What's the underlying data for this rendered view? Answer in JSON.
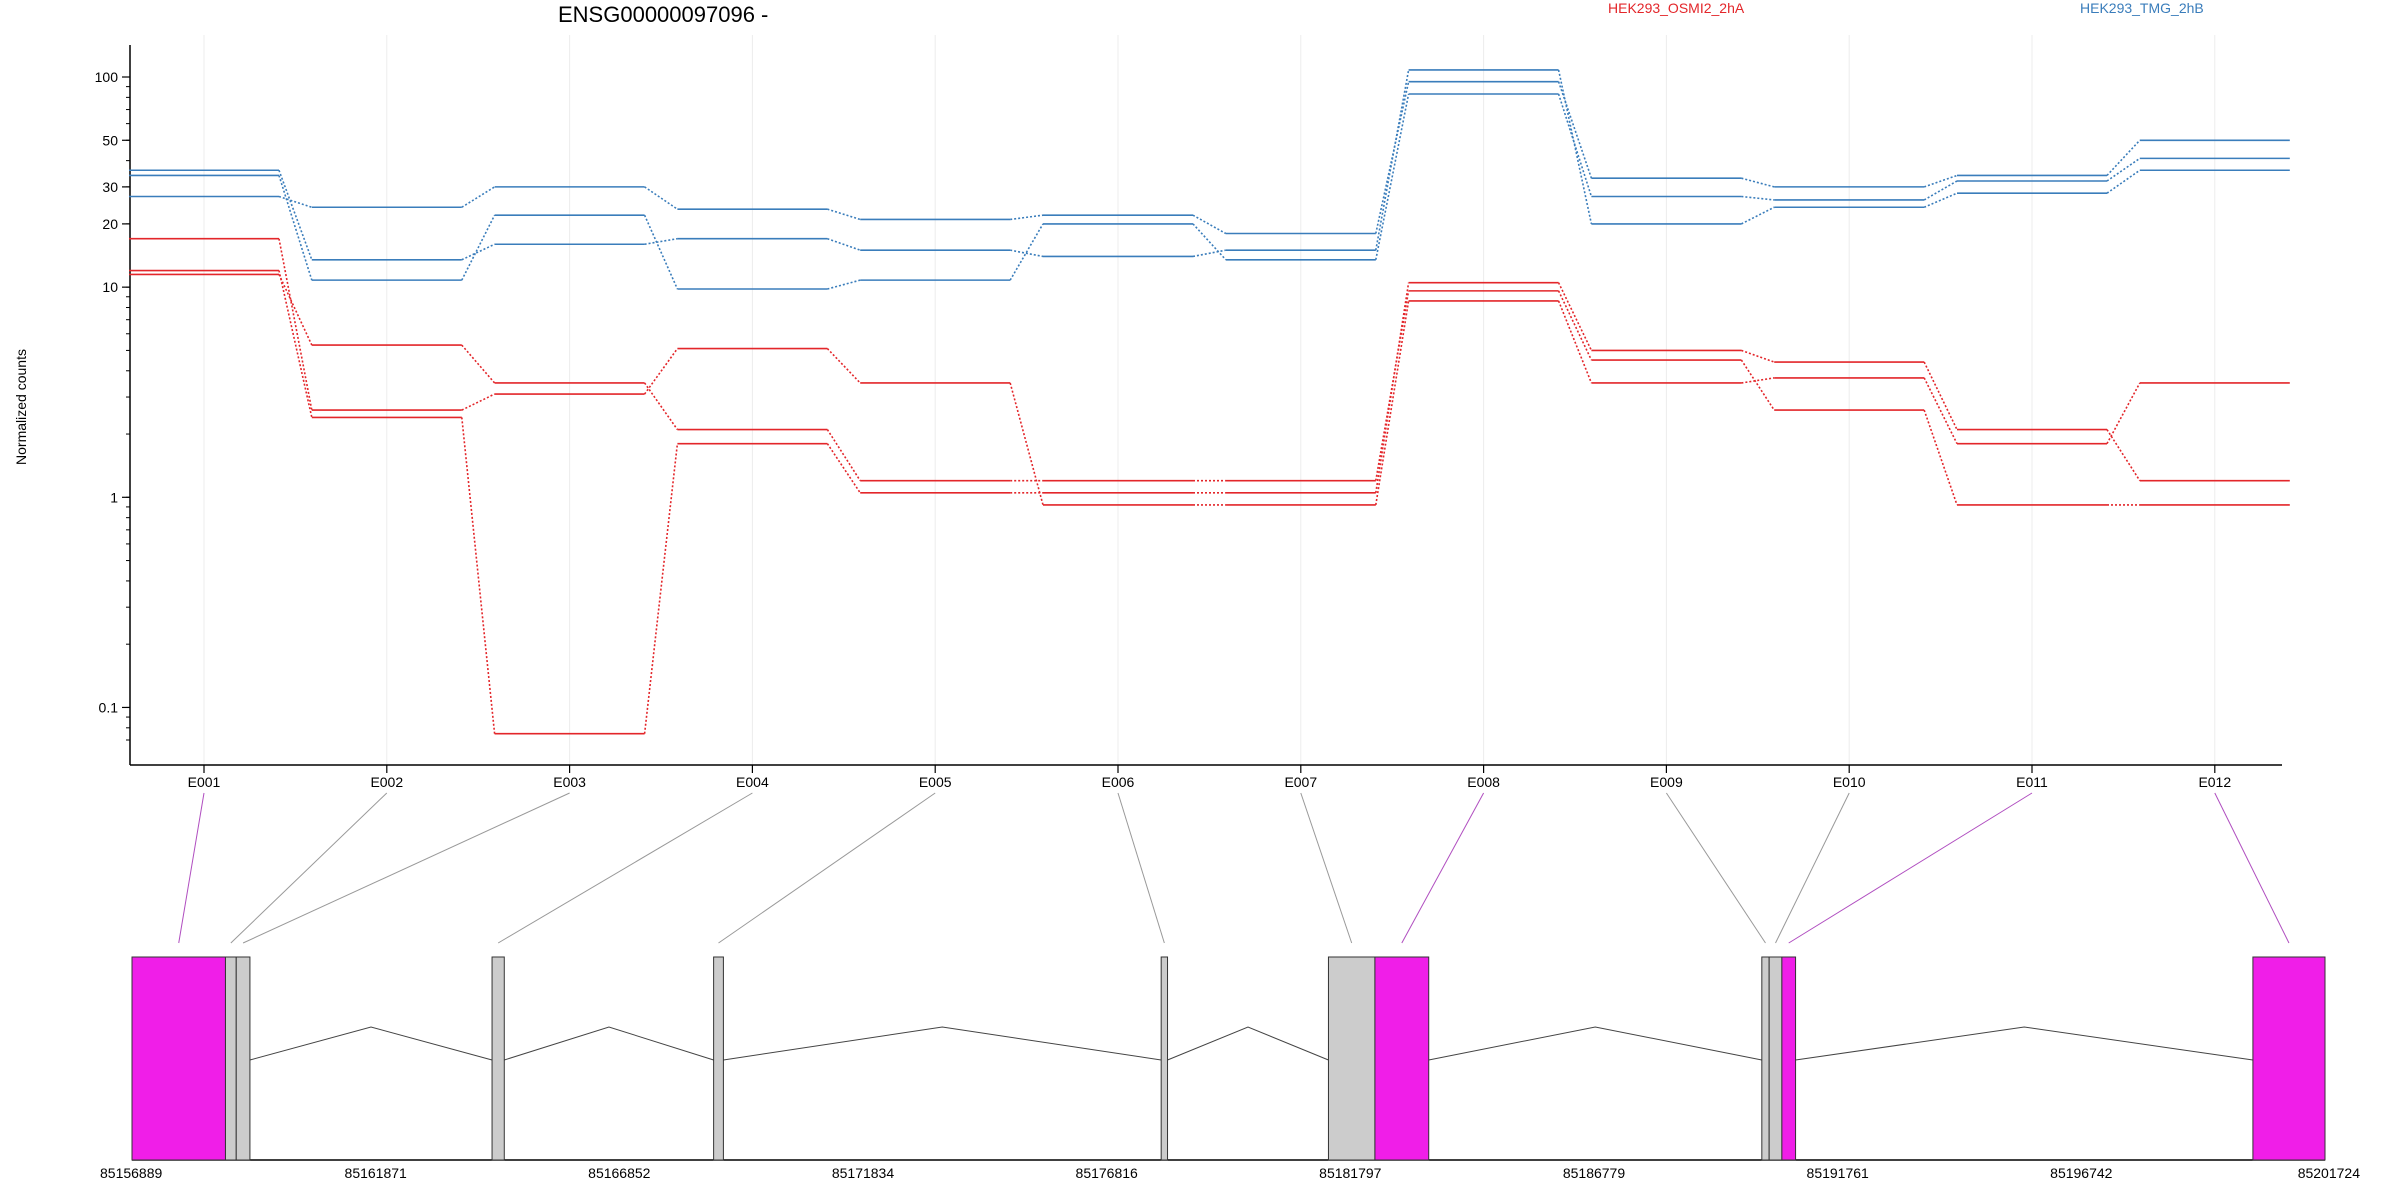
{
  "chart_data": {
    "type": "line",
    "title": "ENSG00000097096 -",
    "ylabel": "Normalized counts",
    "xlabel": "",
    "y_scale": "log",
    "ylim": [
      0.07,
      150
    ],
    "y_ticks": [
      0.1,
      1,
      10,
      20,
      30,
      50,
      100
    ],
    "y_tick_labels": [
      "0.1",
      "1",
      "10",
      "20",
      "30",
      "50",
      "100"
    ],
    "grid": "vertical",
    "legend_placement": "top-right",
    "categories": [
      "E001",
      "E002",
      "E003",
      "E004",
      "E005",
      "E006",
      "E007",
      "E008",
      "E009",
      "E010",
      "E011",
      "E012"
    ],
    "groups": [
      {
        "label": "HEK293_OSMI2_2hA",
        "color": "#e3262a"
      },
      {
        "label": "HEK293_TMG_2hB",
        "color": "#3a7dbb"
      }
    ],
    "series": [
      {
        "group": 1,
        "values": [
          36,
          13.5,
          16,
          17,
          15,
          14,
          15,
          108,
          20,
          24,
          28,
          36
        ]
      },
      {
        "group": 1,
        "values": [
          34,
          10.8,
          22,
          9.8,
          10.8,
          20,
          13.5,
          83,
          27,
          26,
          32,
          41
        ]
      },
      {
        "group": 1,
        "values": [
          27,
          24,
          30,
          23.5,
          21,
          22,
          18,
          95,
          33,
          30,
          34,
          50
        ]
      },
      {
        "group": 0,
        "values": [
          17,
          2.6,
          3.1,
          5.1,
          3.5,
          0.92,
          0.92,
          8.6,
          3.5,
          3.7,
          1.8,
          3.5
        ]
      },
      {
        "group": 0,
        "values": [
          12,
          2.4,
          0.075,
          1.8,
          1.05,
          1.05,
          1.05,
          10.5,
          5.0,
          4.4,
          2.1,
          1.2
        ]
      },
      {
        "group": 0,
        "values": [
          11.5,
          5.3,
          3.5,
          2.1,
          1.2,
          1.2,
          1.2,
          9.6,
          4.5,
          2.6,
          0.92,
          0.92
        ]
      }
    ],
    "gene_model": {
      "coordinate_labels": [
        "85156889",
        "85161871",
        "85166852",
        "85171834",
        "85176816",
        "85181797",
        "85186779",
        "85191761",
        "85196742",
        "85201724"
      ],
      "exon_colors": {
        "tested": "#cccccc",
        "significant": "#f01ee8"
      },
      "exons": [
        {
          "id": "E001",
          "start": 85156889,
          "end": 85158800,
          "significant": true
        },
        {
          "id": "E002",
          "start": 85158800,
          "end": 85159020,
          "significant": false
        },
        {
          "id": "E003",
          "start": 85159020,
          "end": 85159300,
          "significant": false
        },
        {
          "id": "E004",
          "start": 85164250,
          "end": 85164500,
          "significant": false
        },
        {
          "id": "E005",
          "start": 85168780,
          "end": 85168980,
          "significant": false
        },
        {
          "id": "E006",
          "start": 85177930,
          "end": 85178060,
          "significant": false
        },
        {
          "id": "E007",
          "start": 85181350,
          "end": 85182300,
          "significant": false
        },
        {
          "id": "E008",
          "start": 85182300,
          "end": 85183400,
          "significant": true
        },
        {
          "id": "E009",
          "start": 85190210,
          "end": 85190360,
          "significant": false
        },
        {
          "id": "E010",
          "start": 85190360,
          "end": 85190620,
          "significant": false
        },
        {
          "id": "E011",
          "start": 85190620,
          "end": 85190900,
          "significant": true
        },
        {
          "id": "E012",
          "start": 85200250,
          "end": 85201724,
          "significant": true
        }
      ]
    }
  }
}
